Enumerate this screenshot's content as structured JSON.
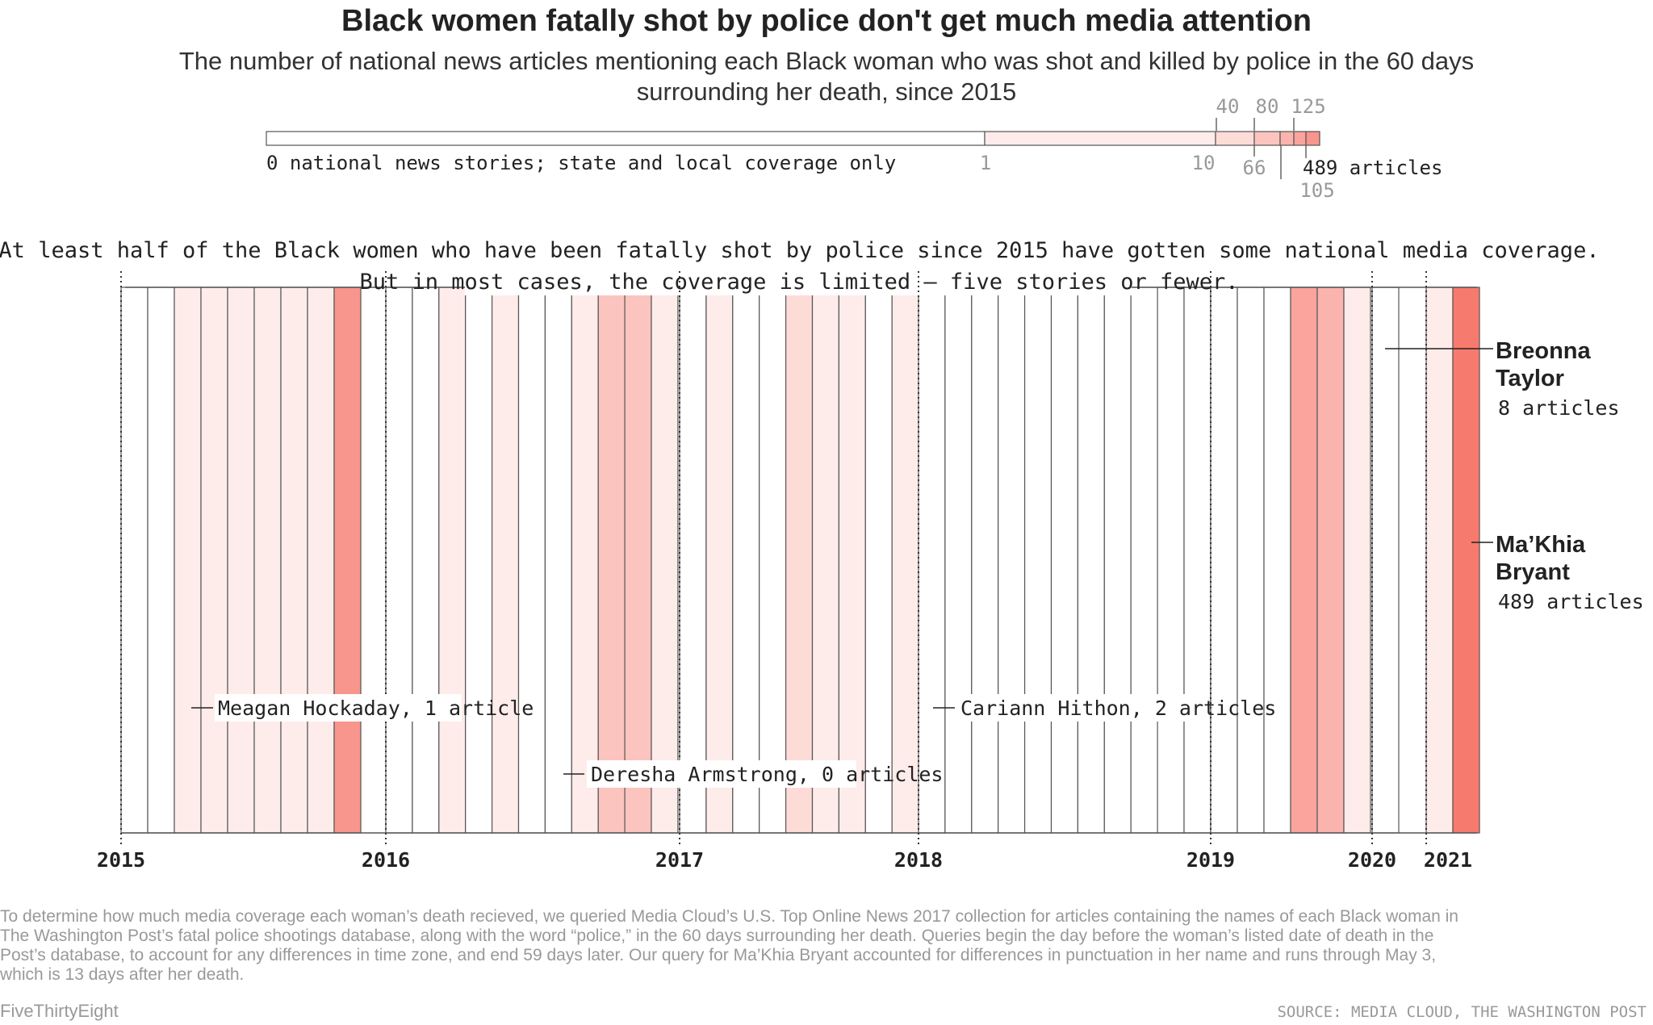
{
  "header": {
    "title": "Black women fatally shot by police don't get much media attention",
    "subtitle_lines": [
      "The number of national news articles mentioning each Black woman who was shot and killed by police in the 60 days",
      "surrounding her death, since 2015"
    ]
  },
  "colors": {
    "empty": "#ffffff",
    "stroke": "#555555",
    "shades": [
      "#ffffff",
      "#feecea",
      "#fddcd8",
      "#fcc4be",
      "#fbb3ad",
      "#faa49d",
      "#f8958c",
      "#f77a6e"
    ]
  },
  "legend": {
    "zero_label": "0 national news stories; state and local coverage only",
    "upper_ticks": [
      "40",
      "80",
      "125"
    ],
    "lower_ticks": [
      "1",
      "10",
      "66",
      "105"
    ],
    "max_label": "489 articles",
    "bins": [
      0,
      1,
      10,
      40,
      66,
      80,
      105,
      125,
      489
    ]
  },
  "annotations": {
    "line1": "At least half of the Black women who have been fatally shot by police since 2015 have gotten some national media coverage.",
    "line2": "But in most cases, the coverage is limited — five stories or fewer."
  },
  "chart_data": {
    "type": "heatmap",
    "title": "Black women fatally shot by police don't get much media attention",
    "x_axis": {
      "ticks": [
        "2015",
        "2016",
        "2017",
        "2018",
        "2019",
        "2020",
        "2021"
      ],
      "range": [
        "2015-01-01",
        "2021-04-30"
      ]
    },
    "shade_levels_per_woman": [
      0,
      0,
      1,
      1,
      1,
      1,
      1,
      1,
      6,
      0,
      0,
      1,
      0,
      1,
      0,
      0,
      1,
      3,
      3,
      1,
      0,
      1,
      0,
      0,
      2,
      1,
      1,
      0,
      1,
      1,
      0,
      0,
      0,
      0,
      0,
      0,
      0,
      0,
      0,
      0,
      0,
      0,
      0,
      0,
      5,
      4,
      1,
      0,
      1,
      7
    ],
    "highlighted": [
      {
        "name": "Meagan Hockaday",
        "articles": 1,
        "label": "Meagan Hockaday, 1 article"
      },
      {
        "name": "Deresha Armstrong",
        "articles": 0,
        "label": "Deresha Armstrong, 0 articles"
      },
      {
        "name": "Cariann Hithon",
        "articles": 2,
        "label": "Cariann Hithon, 2 articles"
      },
      {
        "name_lines": [
          "Breonna",
          "Taylor"
        ],
        "articles": 8,
        "label": "8 articles"
      },
      {
        "name_lines": [
          "Ma’Khia",
          "Bryant"
        ],
        "articles": 489,
        "label": "489 articles"
      }
    ]
  },
  "footer": {
    "methodology_lines": [
      "To determine how much media coverage each woman’s death recieved, we queried Media Cloud’s U.S. Top Online News 2017 collection for articles containing the names of each Black woman in",
      "The Washington Post’s fatal police shootings database, along with the word “police,” in the 60 days surrounding her death. Queries begin the day before the woman’s listed date of death in the",
      "Post’s database, to account for any differences in time zone, and end 59 days later. Our query for Ma’Khia Bryant accounted for differences in punctuation in her name and runs through May 3,",
      "which is 13 days after her death."
    ],
    "brand": "FiveThirtyEight",
    "source": "SOURCE: MEDIA CLOUD, THE WASHINGTON POST"
  }
}
